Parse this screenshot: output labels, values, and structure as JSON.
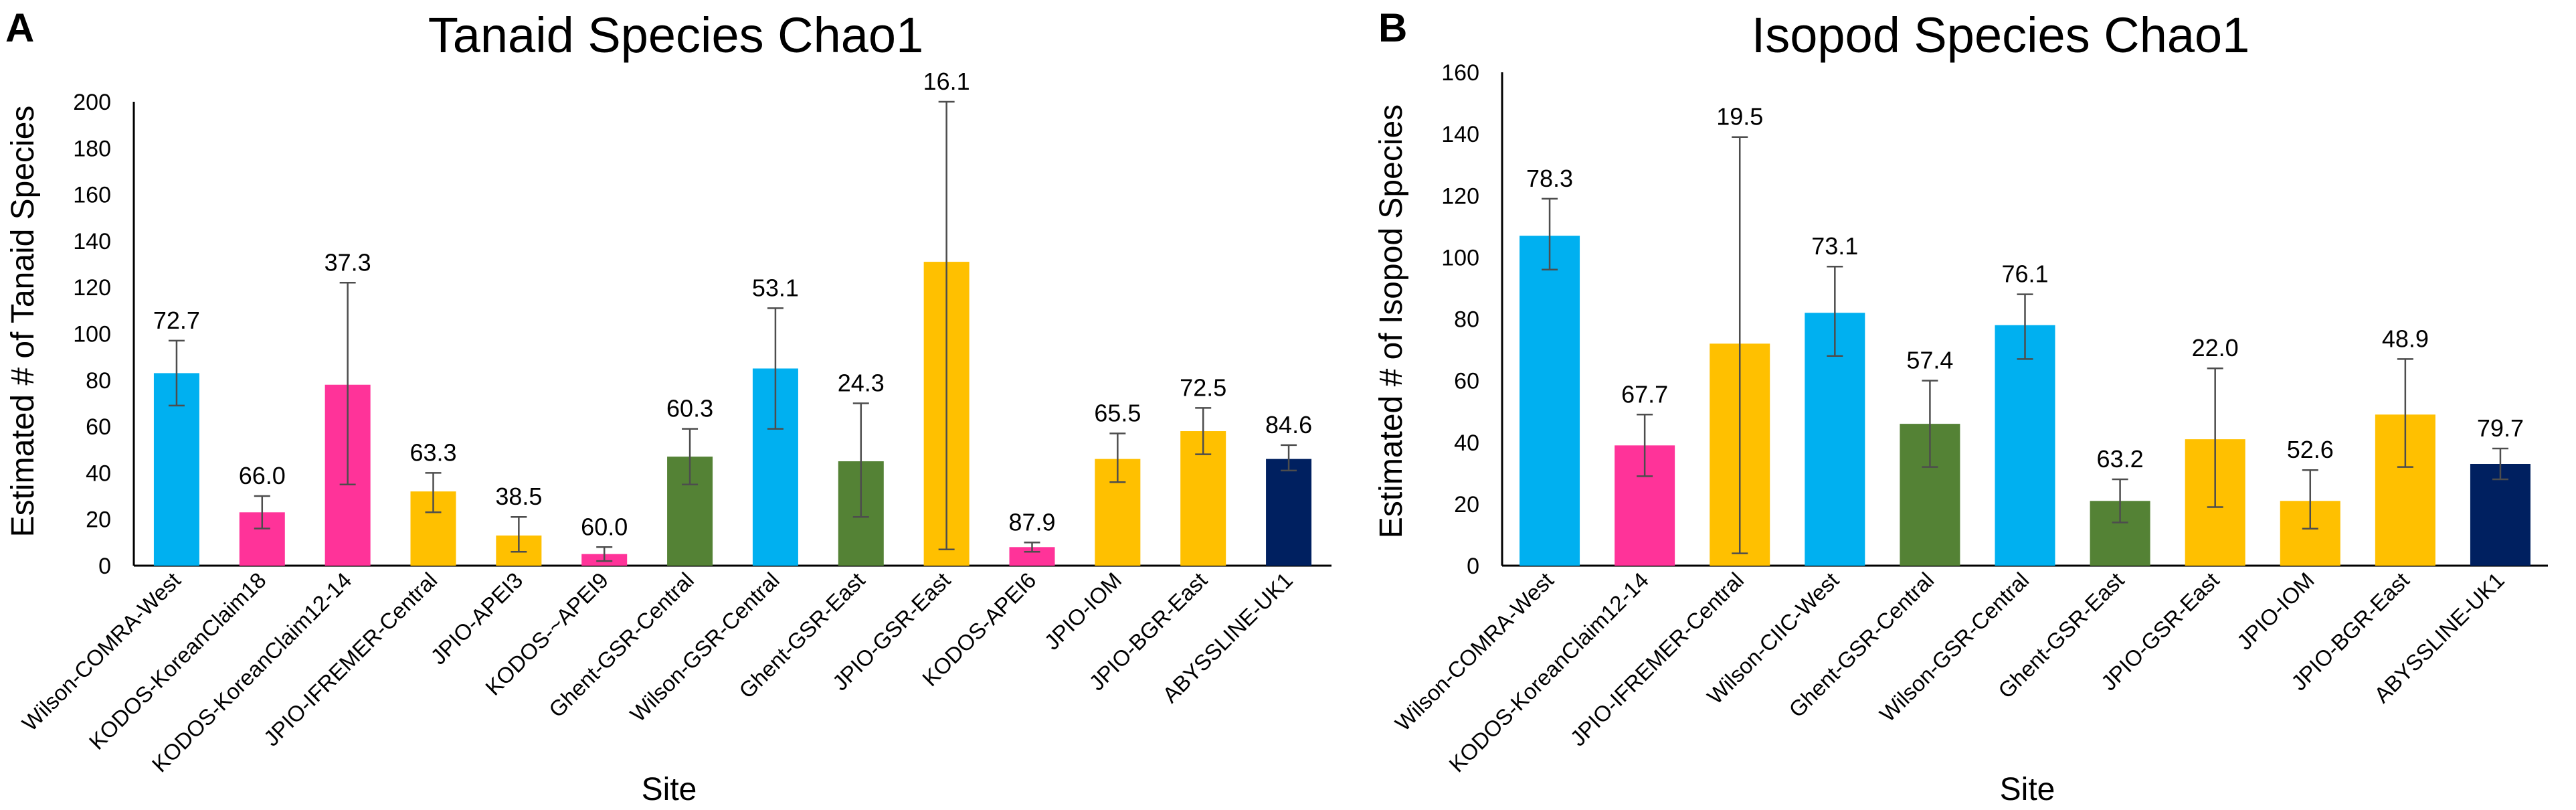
{
  "colors": {
    "blue": "#00B0F0",
    "pink": "#FF3399",
    "yellow": "#FFC000",
    "green": "#548235",
    "navy": "#002060"
  },
  "chart_data": [
    {
      "type": "bar",
      "panel": "A",
      "title": "Tanaid Species Chao1",
      "xlabel": "Site",
      "ylabel": "Estimated # of Tanaid Species",
      "ylim": [
        0,
        200
      ],
      "yticks": [
        "0",
        "20",
        "40",
        "60",
        "80",
        "100",
        "120",
        "140",
        "160",
        "180",
        "200"
      ],
      "categories": [
        "Wilson-COMRA-West",
        "KODOS-KoreanClaim18",
        "KODOS-KoreanClaim12-14",
        "JPIO-IFREMER-Central",
        "JPIO-APEI3",
        "KODOS-~APEI9",
        "Ghent-GSR-Central",
        "Wilson-GSR-Central",
        "Ghent-GSR-East",
        "JPIO-GSR-East",
        "KODOS-APEI6",
        "JPIO-IOM",
        "JPIO-BGR-East",
        "ABYSSLINE-UK1"
      ],
      "values": [
        83,
        23,
        78,
        32,
        13,
        5,
        47,
        85,
        45,
        131,
        8,
        46,
        58,
        46
      ],
      "error_low": [
        69,
        16,
        35,
        23,
        6,
        2,
        35,
        59,
        21,
        7,
        6,
        36,
        48,
        41
      ],
      "error_high": [
        97,
        30,
        122,
        40,
        21,
        8,
        59,
        111,
        70,
        200,
        10,
        57,
        68,
        52
      ],
      "labels": [
        "72.7",
        "66.0",
        "37.3",
        "63.3",
        "38.5",
        "60.0",
        "60.3",
        "53.1",
        "24.3",
        "16.1",
        "87.9",
        "65.5",
        "72.5",
        "84.6"
      ],
      "colors": [
        "blue",
        "pink",
        "pink",
        "yellow",
        "yellow",
        "pink",
        "green",
        "blue",
        "green",
        "yellow",
        "pink",
        "yellow",
        "yellow",
        "navy"
      ]
    },
    {
      "type": "bar",
      "panel": "B",
      "title": "Isopod Species Chao1",
      "xlabel": "Site",
      "ylabel": "Estimated # of Isopod Species",
      "ylim": [
        0,
        160
      ],
      "yticks": [
        "0",
        "20",
        "40",
        "60",
        "80",
        "100",
        "120",
        "140",
        "160"
      ],
      "categories": [
        "Wilson-COMRA-West",
        "KODOS-KoreanClaim12-14",
        "JPIO-IFREMER-Central",
        "Wilson-CIIC-West",
        "Ghent-GSR-Central",
        "Wilson-GSR-Central",
        "Ghent-GSR-East",
        "JPIO-GSR-East",
        "JPIO-IOM",
        "JPIO-BGR-East",
        "ABYSSLINE-UK1"
      ],
      "values": [
        107,
        39,
        72,
        82,
        46,
        78,
        21,
        41,
        21,
        49,
        33
      ],
      "error_low": [
        96,
        29,
        4,
        68,
        32,
        67,
        14,
        19,
        12,
        32,
        28
      ],
      "error_high": [
        119,
        49,
        139,
        97,
        60,
        88,
        28,
        64,
        31,
        67,
        38
      ],
      "labels": [
        "78.3",
        "67.7",
        "19.5",
        "73.1",
        "57.4",
        "76.1",
        "63.2",
        "22.0",
        "52.6",
        "48.9",
        "79.7"
      ],
      "colors": [
        "blue",
        "pink",
        "yellow",
        "blue",
        "green",
        "blue",
        "green",
        "yellow",
        "yellow",
        "yellow",
        "navy"
      ]
    }
  ]
}
